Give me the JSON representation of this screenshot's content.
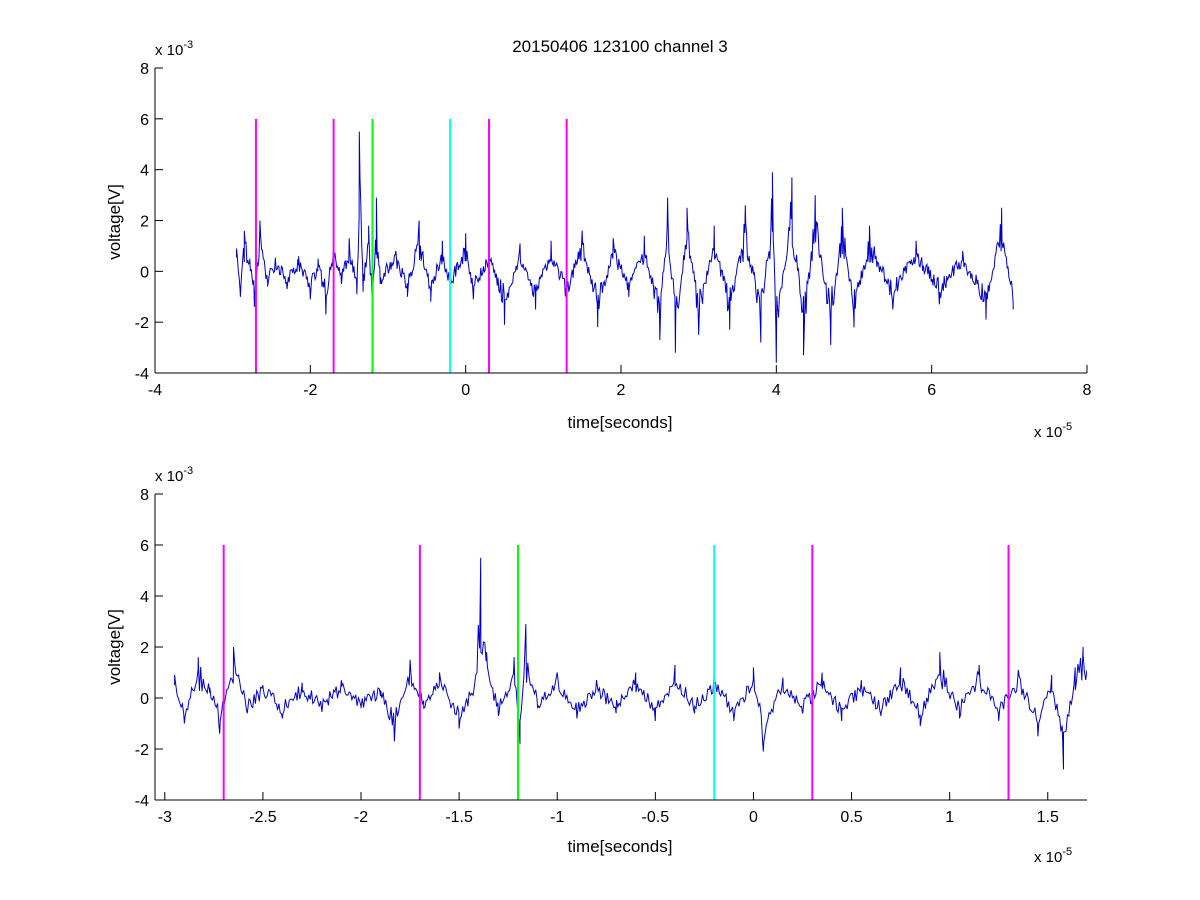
{
  "figure": {
    "title": "20150406 123100 channel 3",
    "background": "#ffffff",
    "trace_color": "#0000cc"
  },
  "chart_data": [
    {
      "type": "line",
      "title": "20150406 123100 channel 3",
      "xlabel": "time[seconds]",
      "ylabel": "voltage[V]",
      "x_multiplier": "x 10",
      "x_exponent": "-5",
      "y_multiplier": "x 10",
      "y_exponent": "-3",
      "xlim": [
        -4,
        8
      ],
      "ylim": [
        -4,
        8
      ],
      "xticks": [
        -4,
        -2,
        0,
        2,
        4,
        6,
        8
      ],
      "xtick_labels": [
        "-4",
        "-2",
        "0",
        "2",
        "4",
        "6",
        "8"
      ],
      "yticks": [
        -4,
        -2,
        0,
        2,
        4,
        6,
        8
      ],
      "ytick_labels": [
        "-4",
        "-2",
        "0",
        "2",
        "4",
        "6",
        "8"
      ],
      "grid": false,
      "trace": {
        "x_start": -2.95,
        "x_end": 7.05,
        "samples": [
          {
            "x": -2.95,
            "y": 0.9
          },
          {
            "x": -2.9,
            "y": -1.0
          },
          {
            "x": -2.85,
            "y": 1.6
          },
          {
            "x": -2.78,
            "y": 0.5
          },
          {
            "x": -2.72,
            "y": -1.4
          },
          {
            "x": -2.65,
            "y": 2.0
          },
          {
            "x": -2.55,
            "y": -0.6
          },
          {
            "x": -2.45,
            "y": 0.5
          },
          {
            "x": -2.3,
            "y": -0.7
          },
          {
            "x": -2.15,
            "y": 0.6
          },
          {
            "x": -2.0,
            "y": -1.1
          },
          {
            "x": -1.9,
            "y": 0.5
          },
          {
            "x": -1.8,
            "y": -1.7
          },
          {
            "x": -1.7,
            "y": 1.4
          },
          {
            "x": -1.6,
            "y": -0.5
          },
          {
            "x": -1.5,
            "y": 1.3
          },
          {
            "x": -1.4,
            "y": -0.9
          },
          {
            "x": -1.37,
            "y": 5.5
          },
          {
            "x": -1.32,
            "y": -0.8
          },
          {
            "x": -1.25,
            "y": 1.8
          },
          {
            "x": -1.2,
            "y": -1.8
          },
          {
            "x": -1.15,
            "y": 2.9
          },
          {
            "x": -1.1,
            "y": -0.5
          },
          {
            "x": -0.9,
            "y": 0.8
          },
          {
            "x": -0.75,
            "y": -1.0
          },
          {
            "x": -0.6,
            "y": 2.0
          },
          {
            "x": -0.45,
            "y": -1.2
          },
          {
            "x": -0.3,
            "y": 1.2
          },
          {
            "x": -0.2,
            "y": -0.8
          },
          {
            "x": 0.0,
            "y": 1.5
          },
          {
            "x": 0.1,
            "y": -1.1
          },
          {
            "x": 0.3,
            "y": 0.8
          },
          {
            "x": 0.5,
            "y": -2.1
          },
          {
            "x": 0.7,
            "y": 1.1
          },
          {
            "x": 0.9,
            "y": -1.5
          },
          {
            "x": 1.1,
            "y": 1.2
          },
          {
            "x": 1.3,
            "y": -1.3
          },
          {
            "x": 1.5,
            "y": 1.6
          },
          {
            "x": 1.7,
            "y": -2.2
          },
          {
            "x": 1.9,
            "y": 1.3
          },
          {
            "x": 2.1,
            "y": -1.0
          },
          {
            "x": 2.3,
            "y": 1.4
          },
          {
            "x": 2.5,
            "y": -2.7
          },
          {
            "x": 2.6,
            "y": 2.9
          },
          {
            "x": 2.7,
            "y": -3.2
          },
          {
            "x": 2.85,
            "y": 2.5
          },
          {
            "x": 3.0,
            "y": -2.5
          },
          {
            "x": 3.2,
            "y": 1.8
          },
          {
            "x": 3.4,
            "y": -2.3
          },
          {
            "x": 3.6,
            "y": 2.6
          },
          {
            "x": 3.8,
            "y": -2.8
          },
          {
            "x": 3.95,
            "y": 3.9
          },
          {
            "x": 4.0,
            "y": -3.6
          },
          {
            "x": 4.2,
            "y": 3.7
          },
          {
            "x": 4.35,
            "y": -3.3
          },
          {
            "x": 4.5,
            "y": 3.0
          },
          {
            "x": 4.7,
            "y": -2.9
          },
          {
            "x": 4.85,
            "y": 2.5
          },
          {
            "x": 5.0,
            "y": -2.2
          },
          {
            "x": 5.2,
            "y": 1.8
          },
          {
            "x": 5.5,
            "y": -1.5
          },
          {
            "x": 5.8,
            "y": 1.2
          },
          {
            "x": 6.1,
            "y": -1.3
          },
          {
            "x": 6.4,
            "y": 0.8
          },
          {
            "x": 6.7,
            "y": -1.9
          },
          {
            "x": 6.9,
            "y": 2.5
          },
          {
            "x": 7.05,
            "y": -1.5
          }
        ]
      },
      "markers": [
        {
          "x": -2.7,
          "y_from": -4,
          "y_to": 6,
          "color": "#ff00ff"
        },
        {
          "x": -1.7,
          "y_from": -4,
          "y_to": 6,
          "color": "#ff00ff"
        },
        {
          "x": -1.2,
          "y_from": -4,
          "y_to": 6,
          "color": "#00ff00"
        },
        {
          "x": -0.2,
          "y_from": -4,
          "y_to": 6,
          "color": "#00ffff"
        },
        {
          "x": 0.3,
          "y_from": -4,
          "y_to": 6,
          "color": "#ff00ff"
        },
        {
          "x": 1.3,
          "y_from": -4,
          "y_to": 6,
          "color": "#ff00ff"
        }
      ]
    },
    {
      "type": "line",
      "title": "",
      "xlabel": "time[seconds]",
      "ylabel": "voltage[V]",
      "x_multiplier": "x 10",
      "x_exponent": "-5",
      "y_multiplier": "x 10",
      "y_exponent": "-3",
      "xlim": [
        -3.05,
        1.7
      ],
      "ylim": [
        -4,
        8
      ],
      "xticks": [
        -3,
        -2.5,
        -2,
        -1.5,
        -1,
        -0.5,
        0,
        0.5,
        1,
        1.5
      ],
      "xtick_labels": [
        "-3",
        "-2.5",
        "-2",
        "-1.5",
        "-1",
        "-0.5",
        "0",
        "0.5",
        "1",
        "1.5"
      ],
      "yticks": [
        -4,
        -2,
        0,
        2,
        4,
        6,
        8
      ],
      "ytick_labels": [
        "-4",
        "-2",
        "0",
        "2",
        "4",
        "6",
        "8"
      ],
      "grid": false,
      "trace": {
        "x_start": -2.95,
        "x_end": 1.7,
        "samples": [
          {
            "x": -2.95,
            "y": 0.9
          },
          {
            "x": -2.9,
            "y": -1.0
          },
          {
            "x": -2.83,
            "y": 1.6
          },
          {
            "x": -2.77,
            "y": 0.4
          },
          {
            "x": -2.72,
            "y": -1.4
          },
          {
            "x": -2.65,
            "y": 2.0
          },
          {
            "x": -2.58,
            "y": -0.6
          },
          {
            "x": -2.5,
            "y": 0.5
          },
          {
            "x": -2.4,
            "y": -0.8
          },
          {
            "x": -2.3,
            "y": 0.6
          },
          {
            "x": -2.2,
            "y": -0.5
          },
          {
            "x": -2.1,
            "y": 0.7
          },
          {
            "x": -2.0,
            "y": -0.4
          },
          {
            "x": -1.9,
            "y": 0.3
          },
          {
            "x": -1.83,
            "y": -1.7
          },
          {
            "x": -1.75,
            "y": 1.5
          },
          {
            "x": -1.68,
            "y": -0.4
          },
          {
            "x": -1.6,
            "y": 1.0
          },
          {
            "x": -1.5,
            "y": -1.2
          },
          {
            "x": -1.42,
            "y": 0.6
          },
          {
            "x": -1.39,
            "y": 5.5
          },
          {
            "x": -1.36,
            "y": 1.8
          },
          {
            "x": -1.3,
            "y": -0.7
          },
          {
            "x": -1.22,
            "y": 1.6
          },
          {
            "x": -1.19,
            "y": -1.8
          },
          {
            "x": -1.16,
            "y": 2.9
          },
          {
            "x": -1.1,
            "y": -0.4
          },
          {
            "x": -1.0,
            "y": 1.0
          },
          {
            "x": -0.9,
            "y": -0.8
          },
          {
            "x": -0.8,
            "y": 0.7
          },
          {
            "x": -0.7,
            "y": -0.6
          },
          {
            "x": -0.6,
            "y": 1.0
          },
          {
            "x": -0.5,
            "y": -0.9
          },
          {
            "x": -0.4,
            "y": 1.3
          },
          {
            "x": -0.3,
            "y": -0.6
          },
          {
            "x": -0.2,
            "y": 1.0
          },
          {
            "x": -0.1,
            "y": -0.9
          },
          {
            "x": 0.0,
            "y": 1.2
          },
          {
            "x": 0.05,
            "y": -2.1
          },
          {
            "x": 0.15,
            "y": 0.8
          },
          {
            "x": 0.25,
            "y": -0.6
          },
          {
            "x": 0.35,
            "y": 1.0
          },
          {
            "x": 0.45,
            "y": -0.9
          },
          {
            "x": 0.55,
            "y": 0.7
          },
          {
            "x": 0.65,
            "y": -0.7
          },
          {
            "x": 0.75,
            "y": 1.2
          },
          {
            "x": 0.85,
            "y": -1.1
          },
          {
            "x": 0.95,
            "y": 1.8
          },
          {
            "x": 1.05,
            "y": -0.8
          },
          {
            "x": 1.15,
            "y": 1.3
          },
          {
            "x": 1.25,
            "y": -0.9
          },
          {
            "x": 1.35,
            "y": 1.1
          },
          {
            "x": 1.45,
            "y": -1.5
          },
          {
            "x": 1.52,
            "y": 0.9
          },
          {
            "x": 1.58,
            "y": -2.8
          },
          {
            "x": 1.64,
            "y": 1.2
          },
          {
            "x": 1.68,
            "y": 2.0
          },
          {
            "x": 1.7,
            "y": 1.1
          }
        ]
      },
      "markers": [
        {
          "x": -2.7,
          "y_from": -4,
          "y_to": 6,
          "color": "#ff00ff"
        },
        {
          "x": -1.7,
          "y_from": -4,
          "y_to": 6,
          "color": "#ff00ff"
        },
        {
          "x": -1.2,
          "y_from": -4,
          "y_to": 6,
          "color": "#00ff00"
        },
        {
          "x": -0.2,
          "y_from": -4,
          "y_to": 6,
          "color": "#00ffff"
        },
        {
          "x": 0.3,
          "y_from": -4,
          "y_to": 6,
          "color": "#ff00ff"
        },
        {
          "x": 1.3,
          "y_from": -4,
          "y_to": 6,
          "color": "#ff00ff"
        }
      ]
    }
  ]
}
